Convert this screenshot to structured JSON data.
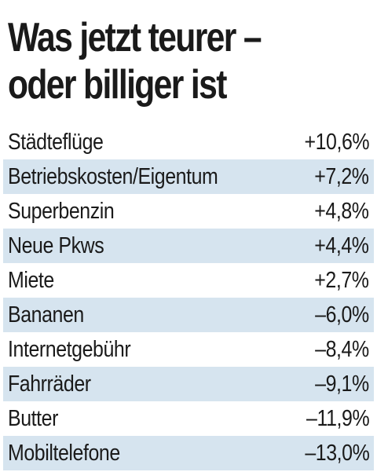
{
  "chart_data": {
    "type": "table",
    "title": "Was jetzt teurer – oder billiger ist",
    "title_lines": [
      "Was jetzt teurer –",
      "oder billiger ist"
    ],
    "categories": [
      "Städteflüge",
      "Betriebskosten/Eigentum",
      "Superbenzin",
      "Neue Pkws",
      "Miete",
      "Bananen",
      "Internetgebühr",
      "Fahrräder",
      "Butter",
      "Mobiltelefone"
    ],
    "values": [
      10.6,
      7.2,
      4.8,
      4.4,
      2.7,
      -6.0,
      -8.4,
      -9.1,
      -11.9,
      -13.0
    ],
    "value_labels": [
      "+10,6%",
      "+7,2%",
      "+4,8%",
      "+4,4%",
      "+2,7%",
      "–6,0%",
      "–8,4%",
      "–9,1%",
      "–11,9%",
      "–13,0%"
    ],
    "unit": "%"
  },
  "colors": {
    "text": "#1a1a1a",
    "row_shade": "#d6e4ef",
    "background": "#ffffff"
  }
}
